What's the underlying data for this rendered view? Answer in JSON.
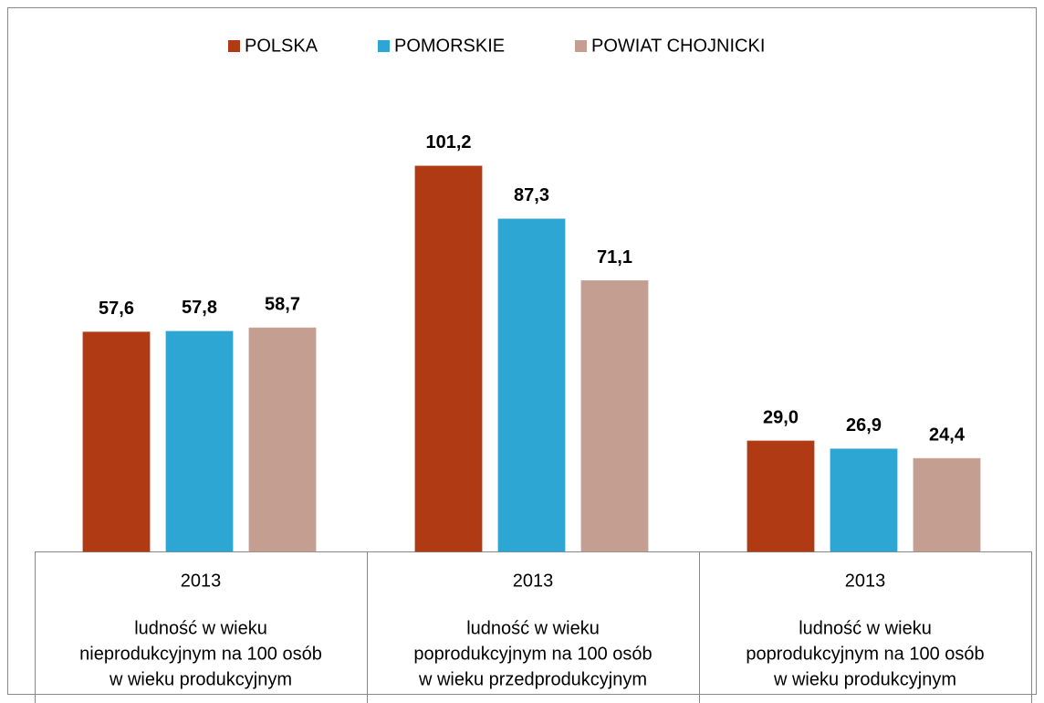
{
  "chart_data": {
    "type": "bar",
    "categories": [
      "2013",
      "2013",
      "2013"
    ],
    "category_labels": [
      [
        "ludność w wieku",
        "nieprodukcyjnym na 100 osób",
        "w wieku produkcyjnym"
      ],
      [
        "ludność w wieku",
        "poprodukcyjnym na 100 osób",
        "w wieku przedprodukcyjnym"
      ],
      [
        "ludność w wieku",
        "poprodukcyjnym na 100 osób",
        "w wieku produkcyjnym"
      ]
    ],
    "series": [
      {
        "name": "POLSKA",
        "color": "#b03a14",
        "values": [
          57.6,
          101.2,
          29.0
        ],
        "value_labels": [
          "57,6",
          "101,2",
          "29,0"
        ]
      },
      {
        "name": "POMORSKIE",
        "color": "#2ea6d4",
        "values": [
          57.8,
          87.3,
          26.9
        ],
        "value_labels": [
          "57,8",
          "87,3",
          "26,9"
        ]
      },
      {
        "name": "POWIAT CHOJNICKI",
        "color": "#c59e92",
        "values": [
          58.7,
          71.1,
          24.4
        ],
        "value_labels": [
          "58,7",
          "71,1",
          "24,4"
        ]
      }
    ],
    "ylim": [
      0,
      135
    ],
    "legend": "top"
  }
}
